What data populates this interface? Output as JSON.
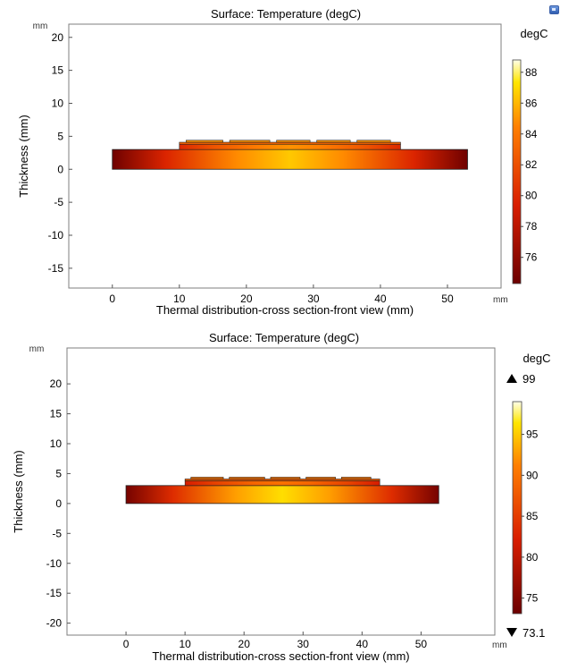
{
  "colors": {
    "heat_dark": "#6b0000",
    "heat_red": "#d81d00",
    "heat_orange": "#ff7f00",
    "heat_yellow": "#ffe600",
    "heat_white": "#ffffe8",
    "frame": "#7f7f7f"
  },
  "toolbar_icon": "window-icon",
  "chart_data": [
    {
      "type": "heatmap",
      "title": "Surface: Temperature (degC)",
      "xlabel": "Thermal distribution-cross section-front view (mm)",
      "ylabel": "Thickness (mm)",
      "x_unit": "mm",
      "y_unit": "mm",
      "xlim": [
        -6.5,
        58
      ],
      "ylim": [
        -18,
        22
      ],
      "x_ticks": [
        0,
        10,
        20,
        30,
        40,
        50
      ],
      "x_tick_labels": [
        "0",
        "10",
        "20",
        "30",
        "40",
        "50"
      ],
      "y_ticks": [
        20,
        15,
        10,
        5,
        0,
        -5,
        -10,
        -15
      ],
      "y_tick_labels": [
        "20",
        "15",
        "10",
        "5",
        "0",
        "-5",
        "-10",
        "-15"
      ],
      "colorbar": {
        "label": "degC",
        "min": 74.3,
        "max": 88.8,
        "ticks": [
          88,
          86,
          84,
          82,
          80,
          78,
          76
        ],
        "tick_labels": [
          "88",
          "86",
          "84",
          "82",
          "80",
          "78",
          "76"
        ],
        "max_marker": "",
        "min_marker": ""
      },
      "geometry": {
        "substrate": {
          "x": [
            0,
            53
          ],
          "y": [
            0,
            3
          ],
          "t_edge": 74.5,
          "t_center": 86.5
        },
        "spreader": {
          "x": [
            10,
            43
          ],
          "y": [
            3,
            3.8
          ],
          "t_edge": 80,
          "t_center": 85
        },
        "top_plate": {
          "x": [
            10,
            43
          ],
          "y": [
            3.8,
            4.1
          ],
          "t": 83
        },
        "pads": [
          [
            11,
            16.5
          ],
          [
            17.5,
            23.5
          ],
          [
            24.5,
            29.5
          ],
          [
            30.5,
            35.5
          ],
          [
            36.5,
            41.5
          ]
        ],
        "pad_y": [
          4.1,
          4.4
        ],
        "pad_t": 85
      }
    },
    {
      "type": "heatmap",
      "title": "Surface: Temperature (degC)",
      "xlabel": "Thermal distribution-cross section-front view (mm)",
      "ylabel": "Thickness (mm)",
      "x_unit": "mm",
      "y_unit": "mm",
      "xlim": [
        -10,
        62.5
      ],
      "ylim": [
        -22,
        26
      ],
      "x_ticks": [
        0,
        10,
        20,
        30,
        40,
        50
      ],
      "x_tick_labels": [
        "0",
        "10",
        "20",
        "30",
        "40",
        "50"
      ],
      "y_ticks": [
        20,
        15,
        10,
        5,
        0,
        -5,
        -10,
        -15,
        -20
      ],
      "y_tick_labels": [
        "20",
        "15",
        "10",
        "5",
        "0",
        "-5",
        "-10",
        "-15",
        "-20"
      ],
      "colorbar": {
        "label": "degC",
        "min": 73.1,
        "max": 99,
        "ticks": [
          95,
          90,
          85,
          80,
          75
        ],
        "tick_labels": [
          "95",
          "90",
          "85",
          "80",
          "75"
        ],
        "max_marker": "99",
        "min_marker": "73.1"
      },
      "geometry": {
        "substrate": {
          "x": [
            0,
            53
          ],
          "y": [
            0,
            3
          ],
          "t_edge": 74,
          "t_center": 96
        },
        "spreader": {
          "x": [
            10,
            43
          ],
          "y": [
            3,
            3.8
          ],
          "t_edge": 82,
          "t_center": 90
        },
        "top_plate": {
          "x": [
            10,
            43
          ],
          "y": [
            3.8,
            4.1
          ],
          "t": 88
        },
        "pads": [
          [
            11,
            16.5
          ],
          [
            17.5,
            23.5
          ],
          [
            24.5,
            29.5
          ],
          [
            30.5,
            35.5
          ],
          [
            36.5,
            41.5
          ]
        ],
        "pad_y": [
          4.1,
          4.4
        ],
        "pad_t": 90
      }
    }
  ]
}
